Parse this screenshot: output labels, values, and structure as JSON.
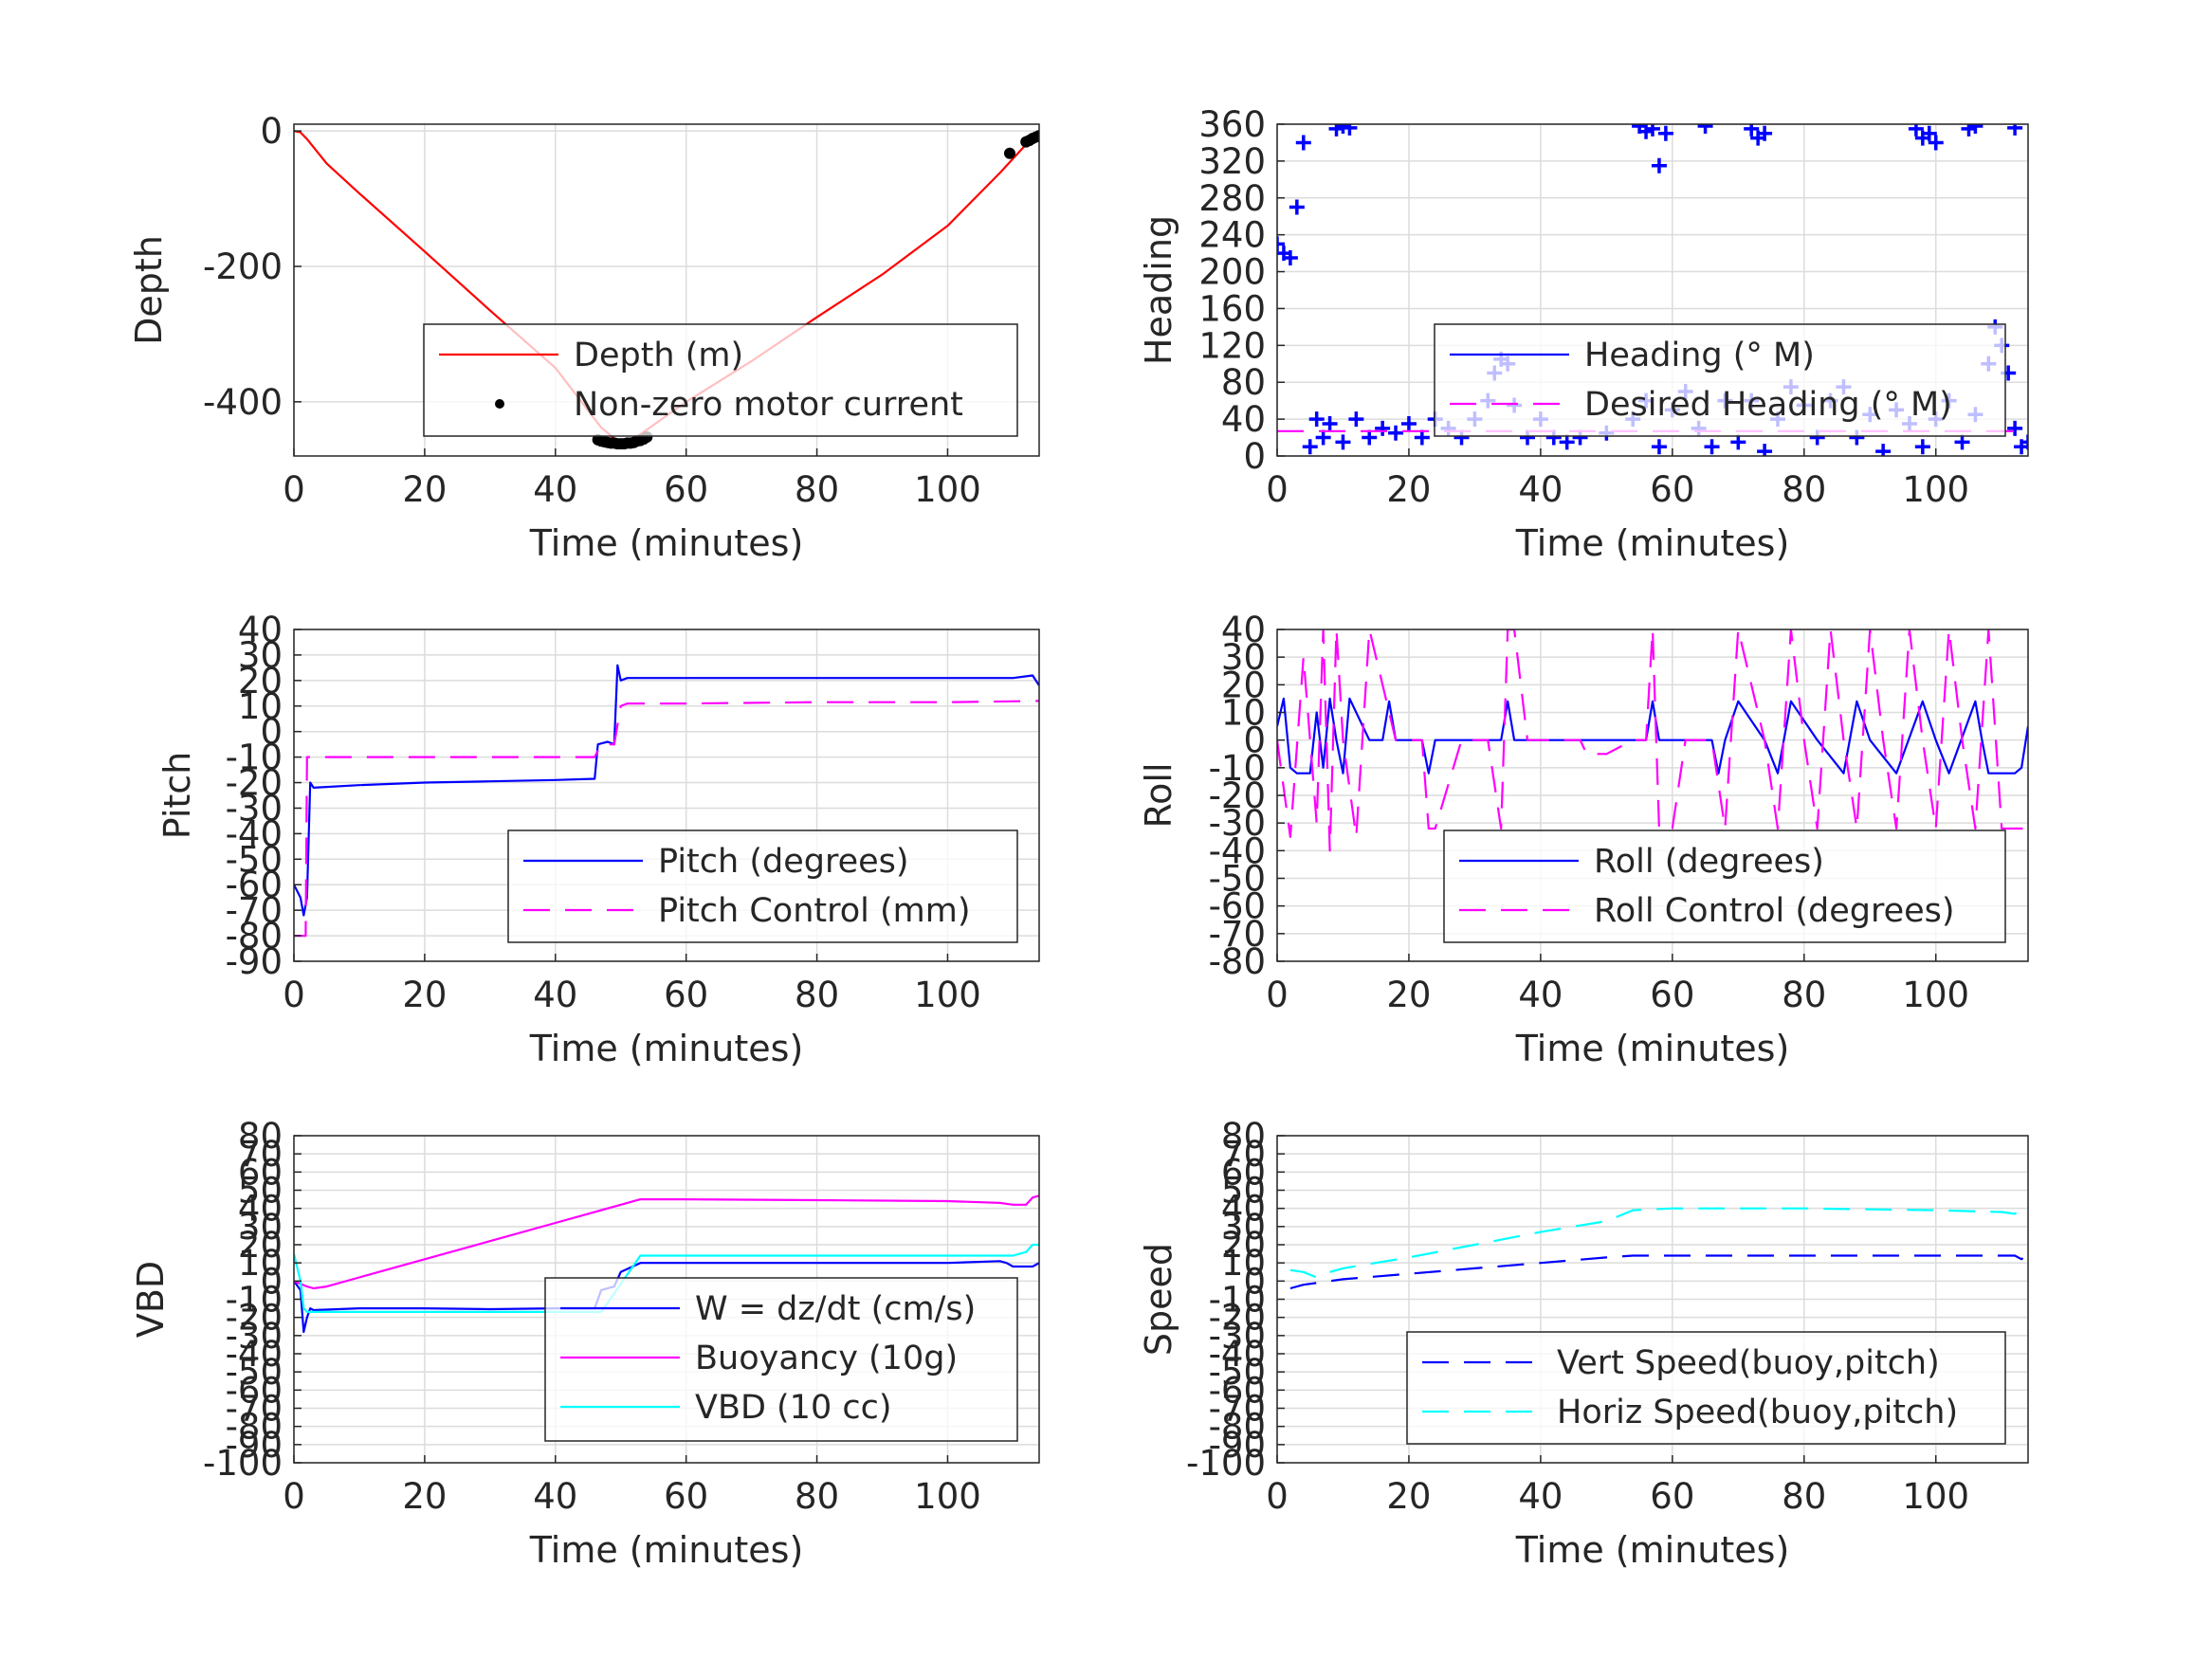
{
  "chart_data": [
    {
      "id": "depth",
      "type": "line",
      "xlabel": "Time (minutes)",
      "ylabel": "Depth",
      "xlim": [
        0,
        114
      ],
      "ylim": [
        -480,
        10
      ],
      "xticks": [
        0,
        20,
        40,
        60,
        80,
        100
      ],
      "yticks": [
        0,
        -200,
        -400
      ],
      "grid": true,
      "legend_position": "bottom-right",
      "series": [
        {
          "name": "Depth (m)",
          "style": "solid",
          "color": "#ff0000",
          "x": [
            0,
            1,
            2,
            5,
            10,
            20,
            30,
            40,
            47,
            50,
            53,
            60,
            70,
            80,
            90,
            100,
            108,
            112,
            114
          ],
          "y": [
            0,
            -2,
            -12,
            -48,
            -92,
            -178,
            -265,
            -350,
            -438,
            -462,
            -448,
            -400,
            -340,
            -275,
            -212,
            -140,
            -62,
            -20,
            -5
          ]
        },
        {
          "name": "Non-zero motor current",
          "style": "dot",
          "color": "#000000",
          "x": [
            46.5,
            47,
            47.5,
            48,
            48.5,
            49,
            49.5,
            50,
            50.5,
            51,
            51.5,
            52,
            52.5,
            53,
            53.5,
            54,
            109.5,
            112,
            112.5,
            113,
            113.5,
            114
          ],
          "y": [
            -456,
            -458,
            -459,
            -460,
            -461,
            -461,
            -462,
            -462,
            -462,
            -461,
            -461,
            -460,
            -458,
            -457,
            -455,
            -452,
            -33,
            -16,
            -14,
            -11,
            -9,
            -7
          ]
        }
      ]
    },
    {
      "id": "heading",
      "type": "scatter",
      "xlabel": "Time (minutes)",
      "ylabel": "Heading",
      "xlim": [
        0,
        114
      ],
      "ylim": [
        0,
        360
      ],
      "xticks": [
        0,
        20,
        40,
        60,
        80,
        100
      ],
      "yticks": [
        0,
        40,
        80,
        120,
        160,
        200,
        240,
        280,
        320,
        360
      ],
      "grid": true,
      "legend_position": "bottom-right",
      "series": [
        {
          "name": "Heading (° M)",
          "style": "plus",
          "color": "#0000ff",
          "x": [
            0,
            1,
            2,
            3,
            4,
            5,
            6,
            7,
            8,
            10,
            12,
            14,
            16,
            18,
            20,
            22,
            24,
            26,
            28,
            30,
            32,
            33,
            34,
            35,
            36,
            38,
            40,
            42,
            44,
            46,
            50,
            54,
            56,
            58,
            60,
            62,
            64,
            66,
            68,
            70,
            72,
            74,
            76,
            78,
            80,
            82,
            84,
            86,
            88,
            90,
            92,
            94,
            96,
            98,
            100,
            102,
            104,
            106,
            108,
            109,
            110,
            111,
            112,
            113,
            114
          ],
          "y": [
            230,
            220,
            215,
            270,
            340,
            10,
            40,
            20,
            35,
            15,
            40,
            20,
            30,
            25,
            35,
            20,
            40,
            30,
            20,
            40,
            60,
            90,
            105,
            100,
            55,
            20,
            40,
            20,
            15,
            20,
            25,
            40,
            60,
            10,
            50,
            70,
            30,
            10,
            60,
            15,
            60,
            5,
            40,
            75,
            55,
            20,
            60,
            75,
            20,
            45,
            5,
            50,
            35,
            10,
            40,
            60,
            15,
            45,
            100,
            140,
            120,
            90,
            30,
            10,
            15
          ]
        },
        {
          "name": "Desired Heading (° M)",
          "style": "dashed",
          "color": "#ff00ff",
          "x": [
            0,
            114
          ],
          "y": [
            27,
            27
          ]
        }
      ],
      "wrap_points": {
        "color": "#0000ff",
        "x": [
          9,
          10,
          11,
          55,
          56,
          57,
          58,
          59,
          65,
          72,
          73,
          74,
          97,
          98,
          99,
          100,
          105,
          106,
          112
        ],
        "y": [
          355,
          358,
          356,
          358,
          352,
          355,
          315,
          350,
          358,
          355,
          345,
          350,
          355,
          345,
          350,
          340,
          355,
          358,
          356
        ]
      }
    },
    {
      "id": "pitch",
      "type": "line",
      "xlabel": "Time (minutes)",
      "ylabel": "Pitch",
      "xlim": [
        0,
        114
      ],
      "ylim": [
        -90,
        40
      ],
      "xticks": [
        0,
        20,
        40,
        60,
        80,
        100
      ],
      "yticks": [
        40,
        30,
        20,
        10,
        0,
        -10,
        -20,
        -30,
        -40,
        -50,
        -60,
        -70,
        -80,
        -90
      ],
      "grid": true,
      "legend_position": "bottom-right",
      "series": [
        {
          "name": "Pitch (degrees)",
          "style": "solid",
          "color": "#0000ff",
          "x": [
            0,
            1,
            1.5,
            2,
            2.5,
            3,
            10,
            20,
            30,
            40,
            46,
            46.5,
            48,
            49,
            49.5,
            50,
            51,
            52,
            60,
            80,
            100,
            110,
            113,
            114
          ],
          "y": [
            -60,
            -65,
            -72,
            -65,
            -20,
            -22,
            -21,
            -20,
            -19.5,
            -19,
            -18.5,
            -5,
            -4,
            -5,
            26,
            20,
            21,
            21,
            21,
            21,
            21,
            21,
            22,
            18
          ]
        },
        {
          "name": "Pitch Control (mm)",
          "style": "dashed",
          "color": "#ff00ff",
          "x": [
            0,
            1.8,
            2,
            46,
            47,
            49,
            50,
            51,
            60,
            80,
            100,
            114
          ],
          "y": [
            -80,
            -80,
            -10,
            -10,
            -5,
            -5,
            10,
            11,
            11,
            11.5,
            11.5,
            12
          ]
        }
      ]
    },
    {
      "id": "roll",
      "type": "line",
      "xlabel": "Time (minutes)",
      "ylabel": "Roll",
      "xlim": [
        0,
        114
      ],
      "ylim": [
        -80,
        40
      ],
      "xticks": [
        0,
        20,
        40,
        60,
        80,
        100
      ],
      "yticks": [
        40,
        30,
        20,
        10,
        0,
        -10,
        -20,
        -30,
        -40,
        -50,
        -60,
        -70,
        -80
      ],
      "grid": true,
      "legend_position": "bottom-right",
      "series": [
        {
          "name": "Roll (degrees)",
          "style": "solid",
          "color": "#0000ff",
          "x": [
            0,
            1,
            2,
            3,
            5,
            6,
            7,
            8,
            9,
            10,
            11,
            14,
            16,
            17,
            18,
            20,
            22,
            23,
            24,
            26,
            30,
            34,
            35,
            36,
            40,
            46,
            56,
            57,
            58,
            62,
            66,
            67,
            68,
            70,
            74,
            76,
            78,
            82,
            86,
            88,
            90,
            94,
            98,
            100,
            102,
            106,
            107,
            108,
            112,
            113,
            114
          ],
          "y": [
            5,
            15,
            -10,
            -12,
            -12,
            10,
            -10,
            15,
            0,
            -12,
            15,
            0,
            0,
            14,
            0,
            0,
            0,
            -12,
            0,
            0,
            0,
            0,
            14,
            0,
            0,
            0,
            0,
            14,
            0,
            0,
            0,
            -12,
            0,
            14,
            0,
            -12,
            14,
            0,
            -12,
            14,
            0,
            -12,
            14,
            0,
            -12,
            14,
            0,
            -12,
            -12,
            -10,
            5
          ]
        },
        {
          "name": "Roll Control (degrees)",
          "style": "dashed",
          "color": "#ff00ff",
          "x": [
            0,
            2,
            4,
            6,
            7,
            8,
            9,
            10,
            12,
            14,
            18,
            20,
            22,
            23,
            24,
            28,
            32,
            34,
            35,
            36,
            38,
            46,
            47,
            50,
            54,
            56,
            57,
            58,
            60,
            62,
            66,
            68,
            70,
            74,
            76,
            78,
            80,
            82,
            84,
            86,
            88,
            90,
            92,
            94,
            96,
            98,
            100,
            102,
            104,
            106,
            108,
            110,
            112,
            114
          ],
          "y": [
            0,
            -35,
            30,
            -30,
            40,
            -40,
            40,
            0,
            -35,
            40,
            0,
            0,
            0,
            -32,
            -32,
            0,
            0,
            -32,
            40,
            40,
            0,
            0,
            -5,
            -5,
            0,
            0,
            40,
            -32,
            -32,
            0,
            0,
            -32,
            40,
            0,
            -32,
            40,
            0,
            -32,
            40,
            0,
            -32,
            40,
            0,
            -32,
            40,
            0,
            -32,
            40,
            0,
            -32,
            40,
            -32,
            -32,
            -32
          ]
        }
      ]
    },
    {
      "id": "vbd",
      "type": "line",
      "xlabel": "Time (minutes)",
      "ylabel": "VBD",
      "xlim": [
        0,
        114
      ],
      "ylim": [
        -100,
        80
      ],
      "xticks": [
        0,
        20,
        40,
        60,
        80,
        100
      ],
      "yticks": [
        80,
        70,
        60,
        50,
        40,
        30,
        20,
        10,
        0,
        -10,
        -20,
        -30,
        -40,
        -50,
        -60,
        -70,
        -80,
        -90,
        -100
      ],
      "grid": true,
      "legend_position": "bottom-right",
      "series": [
        {
          "name": "W = dz/dt (cm/s)",
          "style": "solid",
          "color": "#0000ff",
          "x": [
            0,
            1,
            1.5,
            2,
            2.5,
            3,
            10,
            20,
            30,
            40,
            46,
            47,
            49,
            50,
            53,
            60,
            80,
            100,
            108,
            109,
            110,
            113,
            114
          ],
          "y": [
            0,
            -5,
            -28,
            -20,
            -15,
            -16,
            -15,
            -15,
            -15.5,
            -15,
            -15,
            -5,
            -3,
            5,
            10,
            10,
            10,
            10,
            11,
            10,
            8,
            8,
            10
          ]
        },
        {
          "name": "Buoyancy (10g)",
          "style": "solid",
          "color": "#ff00ff",
          "x": [
            0,
            2,
            3,
            5,
            10,
            20,
            30,
            40,
            53,
            60,
            80,
            100,
            108,
            110,
            112,
            113,
            114
          ],
          "y": [
            0,
            -3,
            -4,
            -3,
            2,
            12,
            22,
            32,
            45,
            45,
            44.5,
            44,
            43,
            42,
            42,
            46,
            47
          ]
        },
        {
          "name": "VBD (10 cc)",
          "style": "solid",
          "color": "#00ffff",
          "x": [
            0,
            1,
            1.5,
            2,
            3,
            10,
            20,
            30,
            40,
            47,
            48,
            53,
            60,
            80,
            100,
            108,
            110,
            112,
            113,
            114
          ],
          "y": [
            15,
            0,
            -15,
            -17,
            -17,
            -17,
            -17,
            -17,
            -17,
            -17,
            -12,
            14,
            14,
            14,
            14,
            14,
            14,
            16,
            20,
            20
          ]
        }
      ]
    },
    {
      "id": "speed",
      "type": "line",
      "xlabel": "Time (minutes)",
      "ylabel": "Speed",
      "xlim": [
        0,
        114
      ],
      "ylim": [
        -100,
        80
      ],
      "xticks": [
        0,
        20,
        40,
        60,
        80,
        100
      ],
      "yticks": [
        80,
        70,
        60,
        50,
        40,
        30,
        20,
        10,
        0,
        -10,
        -20,
        -30,
        -40,
        -50,
        -60,
        -70,
        -80,
        -90,
        -100
      ],
      "grid": true,
      "legend_position": "bottom-right",
      "series": [
        {
          "name": "Vert Speed(buoy,pitch)",
          "style": "dashed",
          "color": "#0000ff",
          "x": [
            2,
            4,
            6,
            10,
            20,
            30,
            40,
            50,
            54,
            60,
            80,
            100,
            110,
            112,
            113,
            114
          ],
          "y": [
            -4,
            -2,
            -1,
            1,
            4,
            7,
            10,
            13,
            14,
            14,
            14,
            14,
            14,
            14,
            12,
            15
          ]
        },
        {
          "name": "Horiz Speed(buoy,pitch)",
          "style": "dashed",
          "color": "#00ffff",
          "x": [
            2,
            4,
            6,
            8,
            10,
            20,
            30,
            40,
            50,
            54,
            60,
            80,
            100,
            110,
            112,
            113,
            114
          ],
          "y": [
            6,
            5,
            2,
            5,
            7,
            13,
            20,
            27,
            33,
            39,
            40,
            40,
            39,
            38,
            37,
            40,
            42
          ]
        }
      ]
    }
  ]
}
